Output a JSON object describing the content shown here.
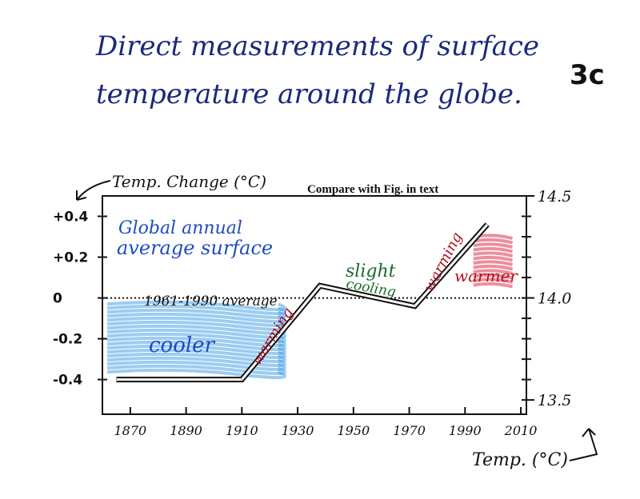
{
  "page": {
    "title_line1": "Direct measurements of surface",
    "title_line2": "temperature around the globe.",
    "tag": "3c"
  },
  "chart_data": {
    "type": "line",
    "title": "Compare with Fig.     in text",
    "ylabel_left": "Temp. Change (°C)",
    "ylabel_right": "Temp. (°C)",
    "x_ticks": [
      "1870",
      "1890",
      "1910",
      "1930",
      "1950",
      "1970",
      "1990",
      "2010"
    ],
    "x_tick_values": [
      1870,
      1890,
      1910,
      1930,
      1950,
      1970,
      1990,
      2010
    ],
    "xlim": [
      1860,
      2012
    ],
    "y_left_ticks": [
      "+0.4",
      "+0.2",
      "0",
      "-0.2",
      "-0.4"
    ],
    "y_left_values": [
      0.4,
      0.2,
      0.0,
      -0.2,
      -0.4
    ],
    "y_right_ticks": [
      "14.5",
      "14.0",
      "13.5"
    ],
    "y_right_values": [
      14.5,
      14.0,
      13.5
    ],
    "ylim_left": [
      -0.57,
      0.5
    ],
    "series": [
      {
        "x": [
          1865,
          1910,
          1938,
          1972,
          1998
        ],
        "y": [
          -0.4,
          -0.4,
          0.06,
          -0.04,
          0.36
        ]
      }
    ],
    "zero_line_label": "1961-1990 average",
    "annotations": {
      "global_line1": "Global annual",
      "global_line2": "average surface",
      "cooler": "cooler",
      "warmer": "warmer",
      "warming_1": "warming",
      "warming_2": "warming",
      "slight": "slight",
      "cooling": "cooling"
    },
    "colors": {
      "line": "#111111",
      "cool_shade": "#4aa3e6",
      "warm_shade": "#e0455a",
      "warming_text": "#b01020",
      "cooling_text": "#1c6a2a",
      "annot_blue": "#1e4cc0"
    }
  }
}
